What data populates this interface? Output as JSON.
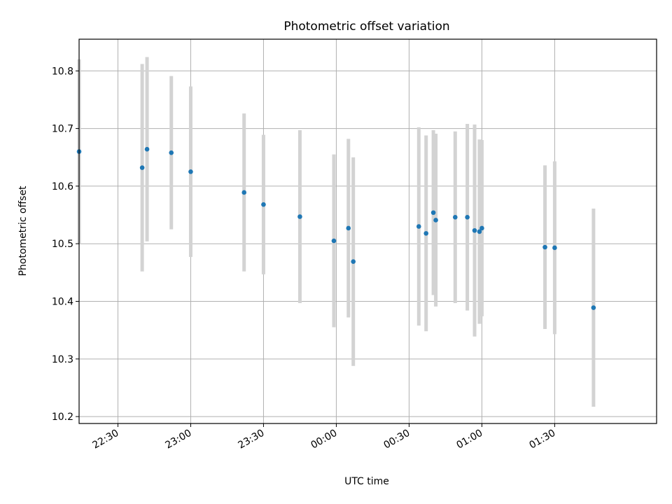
{
  "chart_data": {
    "type": "scatter",
    "title": "Photometric offset variation",
    "xlabel": "UTC time",
    "ylabel": "Photometric offset",
    "x_unit": "UTC time (HH:MM)",
    "xlim": [
      "22:14",
      "02:12"
    ],
    "ylim": [
      10.188,
      10.855
    ],
    "x_ticks": [
      "22:30",
      "23:00",
      "23:30",
      "00:00",
      "00:30",
      "01:00",
      "01:30"
    ],
    "y_ticks": [
      "10.2",
      "10.3",
      "10.4",
      "10.5",
      "10.6",
      "10.7",
      "10.8"
    ],
    "grid": true,
    "point_color": "#1f77b4",
    "errorbar_color": "#d3d3d3",
    "points": [
      {
        "t": "22:14",
        "y": 10.66,
        "err": 0.16
      },
      {
        "t": "22:40",
        "y": 10.632,
        "err": 0.18
      },
      {
        "t": "22:42",
        "y": 10.664,
        "err": 0.16
      },
      {
        "t": "22:52",
        "y": 10.658,
        "err": 0.133
      },
      {
        "t": "23:00",
        "y": 10.625,
        "err": 0.148
      },
      {
        "t": "23:22",
        "y": 10.589,
        "err": 0.137
      },
      {
        "t": "23:30",
        "y": 10.568,
        "err": 0.121
      },
      {
        "t": "23:45",
        "y": 10.547,
        "err": 0.15
      },
      {
        "t": "23:59",
        "y": 10.505,
        "err": 0.15
      },
      {
        "t": "00:05",
        "y": 10.527,
        "err": 0.155
      },
      {
        "t": "00:07",
        "y": 10.469,
        "err": 0.181
      },
      {
        "t": "00:34",
        "y": 10.53,
        "err": 0.172
      },
      {
        "t": "00:37",
        "y": 10.518,
        "err": 0.17
      },
      {
        "t": "00:40",
        "y": 10.554,
        "err": 0.143
      },
      {
        "t": "00:41",
        "y": 10.541,
        "err": 0.15
      },
      {
        "t": "00:49",
        "y": 10.546,
        "err": 0.149
      },
      {
        "t": "00:54",
        "y": 10.546,
        "err": 0.162
      },
      {
        "t": "00:57",
        "y": 10.523,
        "err": 0.184
      },
      {
        "t": "00:59",
        "y": 10.521,
        "err": 0.16
      },
      {
        "t": "01:00",
        "y": 10.527,
        "err": 0.153
      },
      {
        "t": "01:26",
        "y": 10.494,
        "err": 0.142
      },
      {
        "t": "01:30",
        "y": 10.493,
        "err": 0.15
      },
      {
        "t": "01:46",
        "y": 10.389,
        "err": 0.172
      }
    ]
  }
}
